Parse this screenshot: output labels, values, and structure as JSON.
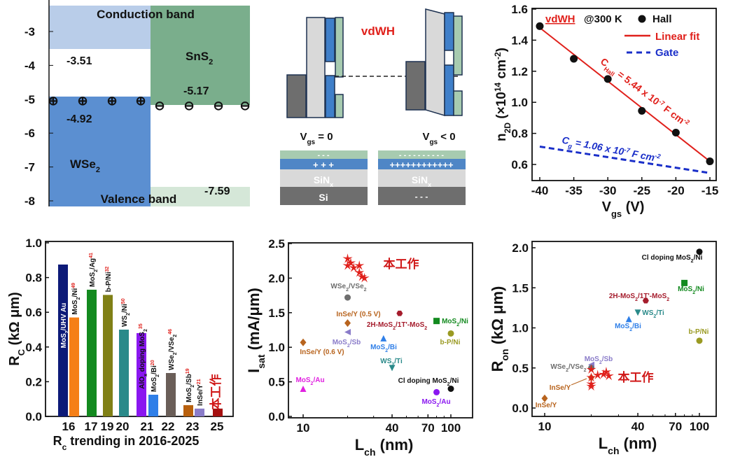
{
  "colors": {
    "red": "#e0201b",
    "blue": "#1a2fc9",
    "wse2": "#5b8fd1",
    "sns2": "#7aae8c",
    "cb": "#b9cde9",
    "vb": "#d5e7d8"
  },
  "band_diagram": {
    "yticks": [
      "-3",
      "-4",
      "-5",
      "-6",
      "-7",
      "-8"
    ],
    "conduction_band_label": "Conduction band",
    "valence_band_label": "Valence band",
    "sns2_label": "SnS_{2}",
    "wse2_label": "WSe_{2}",
    "values": {
      "wse2_cb": "-3.51",
      "sns2_cb": "-5.17",
      "wse2_vb": "-4.92",
      "sns2_vb": "-7.59"
    },
    "hole_symbol": "⊕",
    "electron_symbol": "⊖"
  },
  "schematic": {
    "title": "vdWH",
    "left_caption": "V_{gs} = 0",
    "right_caption": "V_{gs} < 0",
    "sinx_label": "SiN_{x}",
    "si_label": "Si",
    "left_neg": "-        -        -",
    "left_pos": "+        +        +",
    "right_neg": "- - - - - - - - - -",
    "right_pos": "++++++++++++",
    "right_si_neg": "-        -        -"
  },
  "chart_data": [
    {
      "type": "scatter",
      "xlabel": "V_{gs} (V)",
      "ylabel": "n_{2D} (×10^{14} cm^{-2})",
      "xlim": [
        -41,
        -14
      ],
      "ylim": [
        0.5,
        1.6
      ],
      "xticks": [
        -40,
        -35,
        -30,
        -25,
        -20,
        -15
      ],
      "yticks": [
        0.6,
        0.8,
        1.0,
        1.2,
        1.4,
        1.6
      ],
      "grid": false,
      "legend_placement": "top",
      "legend": {
        "sample": "vdWH",
        "condition": "@300 K",
        "hall": "Hall",
        "fit": "Linear fit",
        "gate": "Gate"
      },
      "series": [
        {
          "name": "Hall",
          "x": [
            -40,
            -35,
            -30,
            -25,
            -20,
            -15
          ],
          "y": [
            1.49,
            1.28,
            1.15,
            0.945,
            0.805,
            0.62
          ],
          "color": "#111111"
        },
        {
          "name": "Linear fit",
          "x": [
            -40,
            -15
          ],
          "y": [
            1.48,
            0.62
          ],
          "color": "#e0201b"
        },
        {
          "name": "Gate",
          "x": [
            -40,
            -15
          ],
          "y": [
            0.715,
            0.545
          ],
          "color": "#1a2fc9"
        }
      ],
      "annotations": {
        "c_hall": "C_{Hall} = 5.44 x 10^{-7} F cm^{-2}",
        "c_g": "C_{g} = 1.06 x 10^{-7} F cm^{-2}"
      }
    },
    {
      "type": "bar",
      "xlabel": "R_{c} trending in 2016-2025",
      "ylabel": "R_{C} (kΩ μm)",
      "ylim": [
        0,
        1.0
      ],
      "yticks": [
        "0.0",
        "0.2",
        "0.4",
        "0.6",
        "0.8",
        "1.0"
      ],
      "categories": [
        "16",
        "17",
        "19",
        "20",
        "21",
        "22",
        "23",
        "25"
      ],
      "bars": [
        {
          "label": "MoS_{2}/UHV Au",
          "ref": "",
          "value": 0.875,
          "color": "#0d1a78",
          "year": "16"
        },
        {
          "label": "MoS_{2}/Ni",
          "ref": "49",
          "value": 0.57,
          "color": "#f57f17",
          "year": "16"
        },
        {
          "label": "MoS_{2}/Ag",
          "ref": "41",
          "value": 0.73,
          "color": "#138a1f",
          "year": "17"
        },
        {
          "label": "b-P/Ni",
          "ref": "32",
          "value": 0.7,
          "color": "#808016",
          "year": "19"
        },
        {
          "label": "WS_{2}/Ni",
          "ref": "50",
          "value": 0.5,
          "color": "#2a8a8a",
          "year": "20"
        },
        {
          "label": "AlO_{x} doping MoS_{2}",
          "ref": "35",
          "value": 0.48,
          "color": "#8a17f0",
          "year": "21"
        },
        {
          "label": "MoS_{2}/Bi",
          "ref": "20",
          "value": 0.125,
          "color": "#2f7fe8",
          "year": "21"
        },
        {
          "label": "WSe_{2}/VSe_{2}",
          "ref": "46",
          "value": 0.25,
          "color": "#6a5e58",
          "year": "22"
        },
        {
          "label": "MoS_{2}/Sb",
          "ref": "19",
          "value": 0.065,
          "color": "#b8600d",
          "year": "23"
        },
        {
          "label": "InSe/Y",
          "ref": "21",
          "value": 0.045,
          "color": "#8a7cc9",
          "year": "23"
        },
        {
          "label": "本工作",
          "ref": "",
          "value": 0.045,
          "color": "#a51010",
          "year": "25"
        }
      ]
    },
    {
      "type": "scatter",
      "xlabel": "L_{ch}  (nm)",
      "ylabel": "I_{sat} (mA/μm)",
      "xscale": "log",
      "xlim": [
        8.5,
        140
      ],
      "ylim": [
        0,
        2.5
      ],
      "xticks": [
        10,
        40,
        70,
        100
      ],
      "yticks": [
        "0.0",
        "0.5",
        "1.0",
        "1.5",
        "2.0",
        "2.5"
      ],
      "this_work_label": "本工作",
      "this_work": {
        "x": [
          20,
          20,
          21,
          22,
          24,
          24,
          25,
          26
        ],
        "y": [
          2.28,
          2.18,
          2.22,
          2.15,
          2.18,
          2.08,
          2.02,
          2.0
        ],
        "color": "#e0201b",
        "marker": "star"
      },
      "points": [
        {
          "label": "WSe_{2}/VSe_{2}",
          "x": 20,
          "y": 1.72,
          "color": "#6e6e6e",
          "marker": "circle"
        },
        {
          "label": "InSe/Y (0.5 V)",
          "x": 20,
          "y": 1.35,
          "color": "#b8641e",
          "marker": "diamond"
        },
        {
          "label": "MoS_{2}/Sb",
          "x": 20,
          "y": 1.22,
          "color": "#8a7cc9",
          "marker": "tri-left"
        },
        {
          "label": "InSe/Y (0.6 V)",
          "x": 10,
          "y": 1.07,
          "color": "#b8641e",
          "marker": "diamond"
        },
        {
          "label": "2H-MoS_{2}/1T'-MoS_{2}",
          "x": 45,
          "y": 1.49,
          "color": "#a51c2c",
          "marker": "hexagon"
        },
        {
          "label": "MoS_{2}/Ni",
          "x": 80,
          "y": 1.38,
          "color": "#138a1f",
          "marker": "square"
        },
        {
          "label": "b-P/Ni",
          "x": 100,
          "y": 1.2,
          "color": "#9a9a22",
          "marker": "circle"
        },
        {
          "label": "MoS_{2}/Bi",
          "x": 35,
          "y": 1.13,
          "color": "#2f7fe8",
          "marker": "tri-up"
        },
        {
          "label": "WS_{2}/Ti",
          "x": 40,
          "y": 0.7,
          "color": "#2a8a8a",
          "marker": "tri-down"
        },
        {
          "label": "MoS_{2}/Au",
          "x": 10,
          "y": 0.4,
          "color": "#e020e0",
          "marker": "tri-up"
        },
        {
          "label": "Cl doping MoS_{2}/Ni",
          "x": 100,
          "y": 0.4,
          "color": "#111111",
          "marker": "circle"
        },
        {
          "label": "MoS_{2}/Au",
          "x": 80,
          "y": 0.35,
          "color": "#8a17f0",
          "marker": "circle"
        }
      ]
    },
    {
      "type": "scatter",
      "xlabel": "L_{ch}  (nm)",
      "ylabel": "R_{on} (kΩ μm)",
      "xscale": "log",
      "xlim": [
        8.5,
        140
      ],
      "ylim": [
        -0.1,
        2.05
      ],
      "xticks": [
        10,
        40,
        70,
        100
      ],
      "yticks": [
        "0.0",
        "0.5",
        "1.0",
        "1.5",
        "2.0"
      ],
      "this_work_label": "本工作",
      "this_work": {
        "x": [
          20,
          20,
          20,
          20,
          22,
          24,
          25,
          26
        ],
        "y": [
          0.48,
          0.38,
          0.3,
          0.27,
          0.41,
          0.42,
          0.45,
          0.4
        ],
        "color": "#e0201b",
        "marker": "star"
      },
      "points": [
        {
          "label": "Cl doping MoS_{2}/Ni",
          "x": 100,
          "y": 1.95,
          "color": "#111111",
          "marker": "circle"
        },
        {
          "label": "MoS_{2}/Ni",
          "x": 80,
          "y": 1.56,
          "color": "#138a1f",
          "marker": "square"
        },
        {
          "label": "2H-MoS_{2}/1T'-MoS_{2}",
          "x": 45,
          "y": 1.34,
          "color": "#a51c2c",
          "marker": "hexagon"
        },
        {
          "label": "WS_{2}/Ti",
          "x": 40,
          "y": 1.19,
          "color": "#2a8a8a",
          "marker": "tri-down"
        },
        {
          "label": "MoS_{2}/Bi",
          "x": 35,
          "y": 1.11,
          "color": "#2f7fe8",
          "marker": "tri-up"
        },
        {
          "label": "b-P/Ni",
          "x": 100,
          "y": 0.84,
          "color": "#9a9a22",
          "marker": "circle"
        },
        {
          "label": "MoS_{2}/Sb",
          "x": 20,
          "y": 0.54,
          "color": "#8a7cc9",
          "marker": "tri-left"
        },
        {
          "label": "WSe_{2}/VSe_{2}",
          "x": 20,
          "y": 0.5,
          "color": "#6e6e6e",
          "marker": "circle"
        },
        {
          "label": "InSe/Y",
          "x": 20,
          "y": 0.38,
          "color": "#b8641e",
          "marker": "diamond"
        },
        {
          "label": "InSe/Y",
          "x": 10,
          "y": 0.12,
          "color": "#b8641e",
          "marker": "diamond"
        }
      ]
    }
  ]
}
